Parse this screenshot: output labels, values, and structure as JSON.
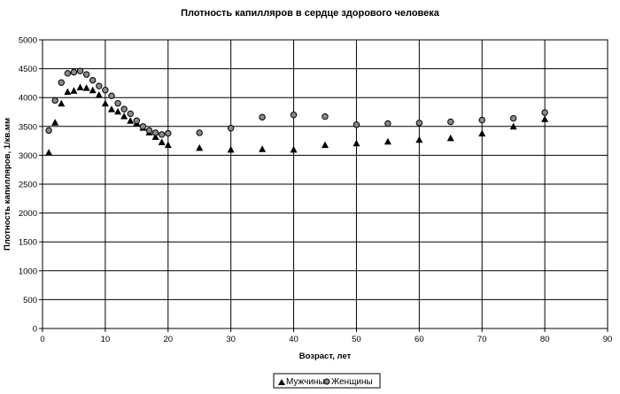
{
  "chart_data": {
    "type": "scatter",
    "title": "Плотность капилляров в сердце здорового человека",
    "xlabel": "Возраст, лет",
    "ylabel": "Плотность капилляров, 1/кв.мм",
    "xlim": [
      0,
      90
    ],
    "ylim": [
      0,
      5000
    ],
    "x_ticks": [
      0,
      10,
      20,
      30,
      40,
      50,
      60,
      70,
      80,
      90
    ],
    "y_ticks": [
      0,
      500,
      1000,
      1500,
      2000,
      2500,
      3000,
      3500,
      4000,
      4500,
      5000
    ],
    "grid": "vertical and horizontal major gridlines",
    "legend_position": "bottom-center",
    "series": [
      {
        "name": "Мужчины",
        "marker": "triangle",
        "color": "#000000",
        "points": [
          [
            1,
            3050
          ],
          [
            2,
            3570
          ],
          [
            3,
            3900
          ],
          [
            4,
            4100
          ],
          [
            5,
            4120
          ],
          [
            6,
            4180
          ],
          [
            7,
            4170
          ],
          [
            8,
            4130
          ],
          [
            9,
            4050
          ],
          [
            10,
            3900
          ],
          [
            11,
            3800
          ],
          [
            12,
            3760
          ],
          [
            13,
            3680
          ],
          [
            14,
            3600
          ],
          [
            15,
            3560
          ],
          [
            16,
            3480
          ],
          [
            17,
            3400
          ],
          [
            18,
            3320
          ],
          [
            19,
            3230
          ],
          [
            20,
            3180
          ],
          [
            25,
            3130
          ],
          [
            30,
            3100
          ],
          [
            35,
            3110
          ],
          [
            40,
            3100
          ],
          [
            45,
            3180
          ],
          [
            50,
            3210
          ],
          [
            55,
            3240
          ],
          [
            60,
            3270
          ],
          [
            65,
            3300
          ],
          [
            70,
            3380
          ],
          [
            75,
            3500
          ],
          [
            80,
            3630
          ]
        ]
      },
      {
        "name": "Женщины",
        "marker": "circle",
        "color": "#000000",
        "points": [
          [
            1,
            3430
          ],
          [
            2,
            3950
          ],
          [
            3,
            4260
          ],
          [
            4,
            4420
          ],
          [
            5,
            4440
          ],
          [
            6,
            4460
          ],
          [
            7,
            4400
          ],
          [
            8,
            4300
          ],
          [
            9,
            4200
          ],
          [
            10,
            4130
          ],
          [
            11,
            4030
          ],
          [
            12,
            3900
          ],
          [
            13,
            3800
          ],
          [
            14,
            3720
          ],
          [
            15,
            3600
          ],
          [
            16,
            3500
          ],
          [
            17,
            3430
          ],
          [
            18,
            3390
          ],
          [
            19,
            3360
          ],
          [
            20,
            3380
          ],
          [
            25,
            3390
          ],
          [
            30,
            3470
          ],
          [
            35,
            3660
          ],
          [
            40,
            3700
          ],
          [
            45,
            3670
          ],
          [
            50,
            3530
          ],
          [
            55,
            3550
          ],
          [
            60,
            3560
          ],
          [
            65,
            3580
          ],
          [
            70,
            3610
          ],
          [
            75,
            3640
          ],
          [
            80,
            3740
          ]
        ]
      }
    ]
  }
}
